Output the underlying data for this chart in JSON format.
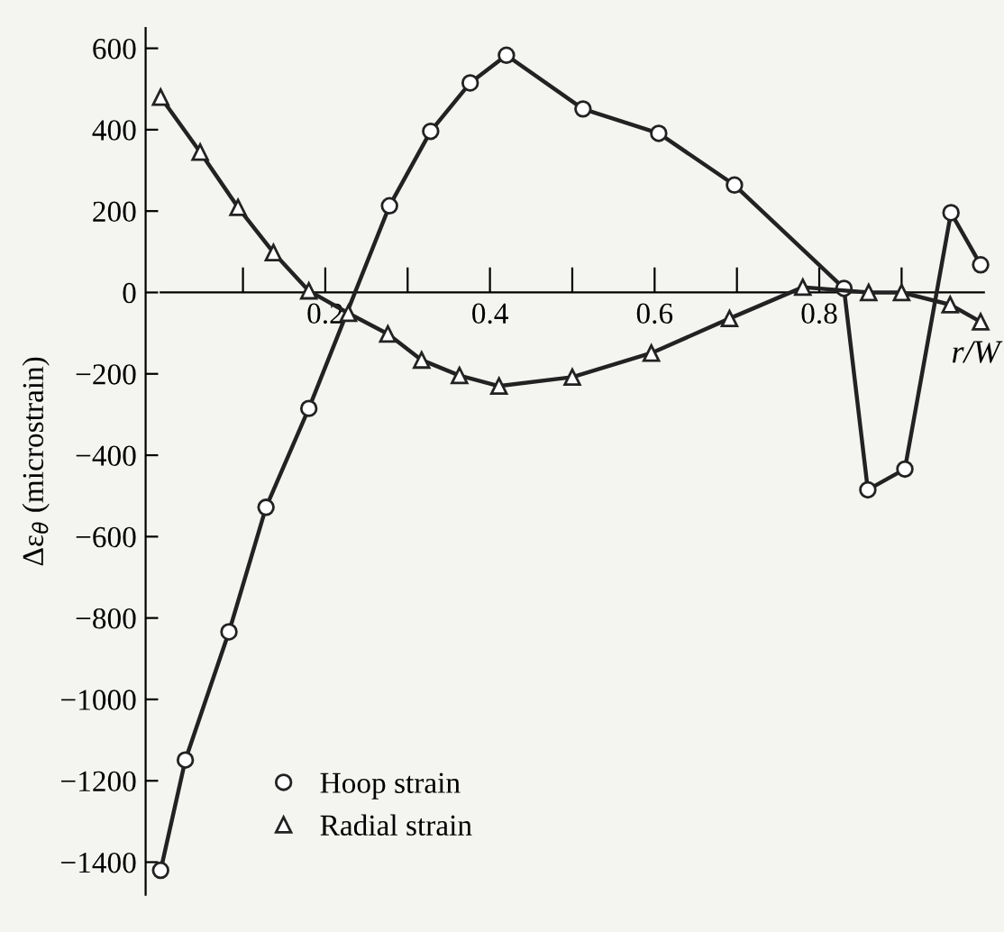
{
  "chart_data": {
    "type": "line",
    "xlabel": "r/W",
    "ylabel": "Δε$_{θ}$ (microstrain)",
    "xlim": [
      0,
      1.0
    ],
    "ylim": [
      -1480,
      650
    ],
    "xticks": [
      {
        "value": 0.1,
        "label": null
      },
      0.2,
      {
        "value": 0.3,
        "label": null
      },
      0.4,
      {
        "value": 0.5,
        "label": null
      },
      0.6,
      {
        "value": 0.7,
        "label": null
      },
      0.8,
      {
        "value": 0.9,
        "label": null
      }
    ],
    "yticks": [
      {
        "value": -1400,
        "label": "−1400"
      },
      {
        "value": -1200,
        "label": "−1200"
      },
      {
        "value": -1000,
        "label": "−1000"
      },
      {
        "value": -800,
        "label": "−800"
      },
      {
        "value": -600,
        "label": "−600"
      },
      {
        "value": -400,
        "label": "−400"
      },
      {
        "value": -200,
        "label": "−200"
      },
      0,
      200,
      400,
      600
    ],
    "grid": false,
    "legend": "bottom left",
    "line_style": "solid",
    "series": [
      {
        "name": "Hoop strain",
        "color": "#222222",
        "marker": "circle",
        "x": [
          0.0,
          0.03,
          0.083,
          0.128,
          0.18,
          0.278,
          0.328,
          0.376,
          0.42,
          0.513,
          0.605,
          0.697,
          0.83,
          0.859,
          0.904,
          0.96,
          0.996
        ],
        "values": [
          -1420,
          -1149,
          -834,
          -528,
          -285,
          213,
          396,
          515,
          583,
          451,
          391,
          264,
          10,
          -485,
          -434,
          196,
          68
        ]
      },
      {
        "name": "Radial strain",
        "color": "#222222",
        "marker": "triangle",
        "x": [
          0.0,
          0.048,
          0.094,
          0.137,
          0.18,
          0.228,
          0.276,
          0.317,
          0.363,
          0.411,
          0.5,
          0.596,
          0.691,
          0.78,
          0.86,
          0.9,
          0.959,
          0.996
        ],
        "values": [
          480,
          345,
          209,
          98,
          4,
          -51,
          -102,
          -166,
          -204,
          -230,
          -208,
          -149,
          -64,
          13,
          0,
          0,
          -30,
          -72
        ]
      }
    ]
  }
}
